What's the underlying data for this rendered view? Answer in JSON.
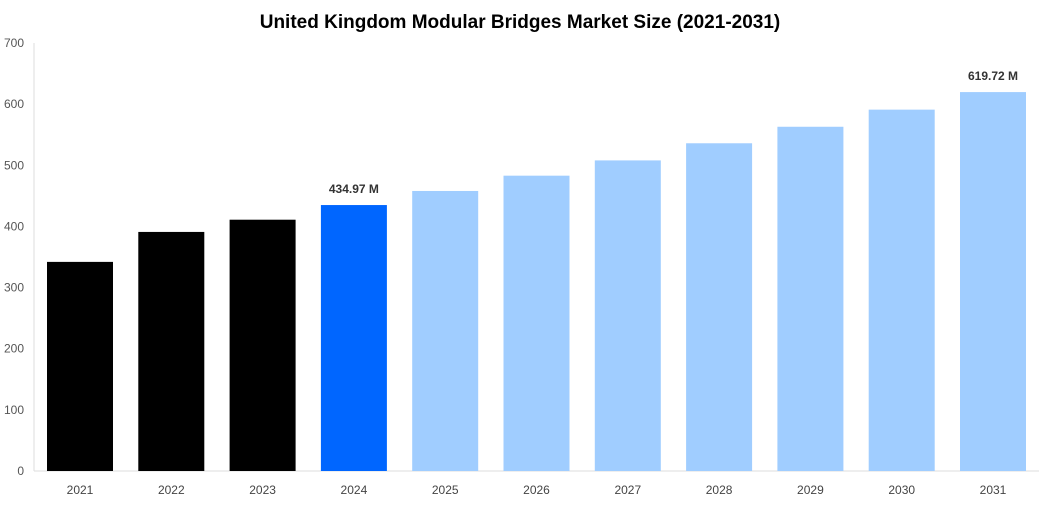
{
  "chart_data": {
    "type": "bar",
    "title": "United Kingdom Modular Bridges Market Size (2021-2031)",
    "xlabel": "",
    "ylabel": "",
    "ylim": [
      0,
      700
    ],
    "yticks": [
      "0",
      "100",
      "200",
      "300",
      "400",
      "500",
      "600",
      "700"
    ],
    "grid": false,
    "categories": [
      "2021",
      "2022",
      "2023",
      "2024",
      "2025",
      "2026",
      "2027",
      "2028",
      "2029",
      "2030",
      "2031"
    ],
    "values": [
      342,
      391,
      411,
      434.97,
      458,
      483,
      508,
      536,
      563,
      591,
      619.72
    ],
    "colors": [
      "#000000",
      "#000000",
      "#000000",
      "#0066ff",
      "#a0cdff",
      "#a0cdff",
      "#a0cdff",
      "#a0cdff",
      "#a0cdff",
      "#a0cdff",
      "#a0cdff"
    ],
    "data_labels": [
      {
        "category": "2024",
        "text": "434.97 M"
      },
      {
        "category": "2031",
        "text": "619.72 M"
      }
    ]
  }
}
